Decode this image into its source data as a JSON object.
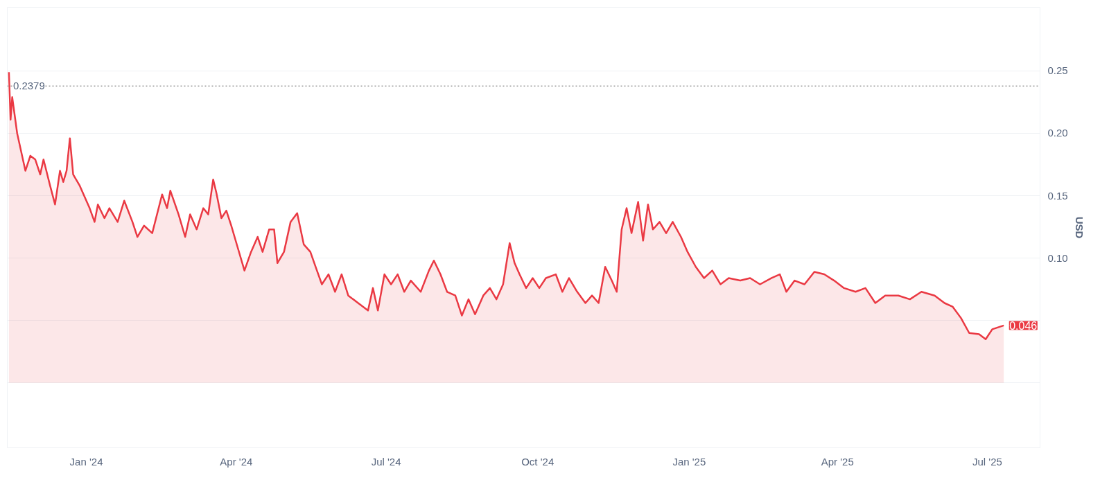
{
  "chart_data": {
    "type": "area",
    "ylabel": "USD",
    "x": [
      "2023-11-15",
      "2023-11-16",
      "2023-11-17",
      "2023-11-20",
      "2023-11-25",
      "2023-11-28",
      "2023-12-01",
      "2023-12-04",
      "2023-12-06",
      "2023-12-10",
      "2023-12-13",
      "2023-12-16",
      "2023-12-18",
      "2023-12-20",
      "2023-12-22",
      "2023-12-24",
      "2023-12-28",
      "2024-01-03",
      "2024-01-06",
      "2024-01-08",
      "2024-01-12",
      "2024-01-15",
      "2024-01-20",
      "2024-01-24",
      "2024-01-29",
      "2024-02-01",
      "2024-02-05",
      "2024-02-10",
      "2024-02-16",
      "2024-02-19",
      "2024-02-21",
      "2024-02-26",
      "2024-03-01",
      "2024-03-04",
      "2024-03-08",
      "2024-03-12",
      "2024-03-15",
      "2024-03-18",
      "2024-03-20",
      "2024-03-23",
      "2024-03-26",
      "2024-03-29",
      "2024-04-02",
      "2024-04-06",
      "2024-04-10",
      "2024-04-14",
      "2024-04-17",
      "2024-04-21",
      "2024-04-24",
      "2024-04-26",
      "2024-04-30",
      "2024-05-04",
      "2024-05-08",
      "2024-05-12",
      "2024-05-16",
      "2024-05-20",
      "2024-05-23",
      "2024-05-27",
      "2024-05-31",
      "2024-06-04",
      "2024-06-08",
      "2024-06-14",
      "2024-06-20",
      "2024-06-23",
      "2024-06-26",
      "2024-06-30",
      "2024-07-04",
      "2024-07-08",
      "2024-07-12",
      "2024-07-16",
      "2024-07-22",
      "2024-07-27",
      "2024-07-30",
      "2024-08-03",
      "2024-08-07",
      "2024-08-12",
      "2024-08-16",
      "2024-08-20",
      "2024-08-24",
      "2024-08-29",
      "2024-09-02",
      "2024-09-06",
      "2024-09-10",
      "2024-09-14",
      "2024-09-17",
      "2024-09-20",
      "2024-09-24",
      "2024-09-28",
      "2024-10-02",
      "2024-10-06",
      "2024-10-12",
      "2024-10-16",
      "2024-10-20",
      "2024-10-25",
      "2024-10-30",
      "2024-11-03",
      "2024-11-07",
      "2024-11-11",
      "2024-11-15",
      "2024-11-18",
      "2024-11-21",
      "2024-11-24",
      "2024-11-27",
      "2024-12-01",
      "2024-12-04",
      "2024-12-07",
      "2024-12-10",
      "2024-12-14",
      "2024-12-18",
      "2024-12-22",
      "2024-12-27",
      "2024-12-31",
      "2025-01-05",
      "2025-01-10",
      "2025-01-15",
      "2025-01-20",
      "2025-01-25",
      "2025-02-01",
      "2025-02-07",
      "2025-02-13",
      "2025-02-20",
      "2025-02-25",
      "2025-03-01",
      "2025-03-06",
      "2025-03-12",
      "2025-03-18",
      "2025-03-24",
      "2025-03-30",
      "2025-04-05",
      "2025-04-12",
      "2025-04-18",
      "2025-04-24",
      "2025-04-30",
      "2025-05-08",
      "2025-05-15",
      "2025-05-22",
      "2025-05-30",
      "2025-06-05",
      "2025-06-10",
      "2025-06-15",
      "2025-06-20",
      "2025-06-26",
      "2025-06-30",
      "2025-07-04",
      "2025-07-11"
    ],
    "series": [
      {
        "color": "#ea3943",
        "values": [
          0.249,
          0.211,
          0.229,
          0.2,
          0.17,
          0.182,
          0.179,
          0.167,
          0.179,
          0.158,
          0.143,
          0.17,
          0.161,
          0.17,
          0.196,
          0.167,
          0.158,
          0.14,
          0.129,
          0.143,
          0.132,
          0.14,
          0.129,
          0.146,
          0.129,
          0.117,
          0.126,
          0.12,
          0.151,
          0.14,
          0.154,
          0.135,
          0.117,
          0.135,
          0.123,
          0.14,
          0.135,
          0.163,
          0.152,
          0.132,
          0.138,
          0.126,
          0.108,
          0.09,
          0.105,
          0.117,
          0.105,
          0.123,
          0.123,
          0.096,
          0.105,
          0.129,
          0.136,
          0.111,
          0.105,
          0.09,
          0.079,
          0.087,
          0.073,
          0.087,
          0.07,
          0.064,
          0.058,
          0.076,
          0.058,
          0.087,
          0.079,
          0.087,
          0.073,
          0.082,
          0.073,
          0.09,
          0.098,
          0.087,
          0.073,
          0.07,
          0.054,
          0.067,
          0.055,
          0.07,
          0.076,
          0.067,
          0.079,
          0.112,
          0.096,
          0.087,
          0.076,
          0.084,
          0.076,
          0.084,
          0.087,
          0.073,
          0.084,
          0.073,
          0.064,
          0.07,
          0.064,
          0.093,
          0.082,
          0.073,
          0.123,
          0.14,
          0.12,
          0.145,
          0.114,
          0.143,
          0.123,
          0.129,
          0.12,
          0.129,
          0.117,
          0.105,
          0.093,
          0.084,
          0.09,
          0.079,
          0.084,
          0.082,
          0.084,
          0.079,
          0.084,
          0.087,
          0.073,
          0.082,
          0.079,
          0.089,
          0.087,
          0.082,
          0.076,
          0.073,
          0.076,
          0.064,
          0.07,
          0.07,
          0.067,
          0.073,
          0.07,
          0.064,
          0.061,
          0.052,
          0.04,
          0.039,
          0.035,
          0.043,
          0.046
        ]
      }
    ],
    "xlim": [
      "2023-11-14",
      "2025-08-02"
    ],
    "xticks": [
      {
        "value": "2024-01-01",
        "label": "Jan '24"
      },
      {
        "value": "2024-04-01",
        "label": "Apr '24"
      },
      {
        "value": "2024-07-01",
        "label": "Jul '24"
      },
      {
        "value": "2024-10-01",
        "label": "Oct '24"
      },
      {
        "value": "2025-01-01",
        "label": "Jan '25"
      },
      {
        "value": "2025-04-01",
        "label": "Apr '25"
      },
      {
        "value": "2025-07-01",
        "label": "Jul '25"
      }
    ],
    "ylim": [
      -0.052,
      0.301
    ],
    "yticks": [
      {
        "value": 0,
        "label": null
      },
      {
        "value": 0.05,
        "label": null
      },
      {
        "value": 0.1,
        "label": "0.10"
      },
      {
        "value": 0.15,
        "label": "0.15"
      },
      {
        "value": 0.2,
        "label": "0.20"
      },
      {
        "value": 0.25,
        "label": "0.25"
      }
    ],
    "grid": "y",
    "ref_lines": [
      {
        "axis": "y",
        "value": 0.2379,
        "label": "0.2379",
        "line_style": "dotted",
        "color": "#9e9e9e"
      }
    ],
    "annotations": [
      {
        "text": "0.046",
        "x": "2025-07-11",
        "y": 0.046
      }
    ]
  }
}
